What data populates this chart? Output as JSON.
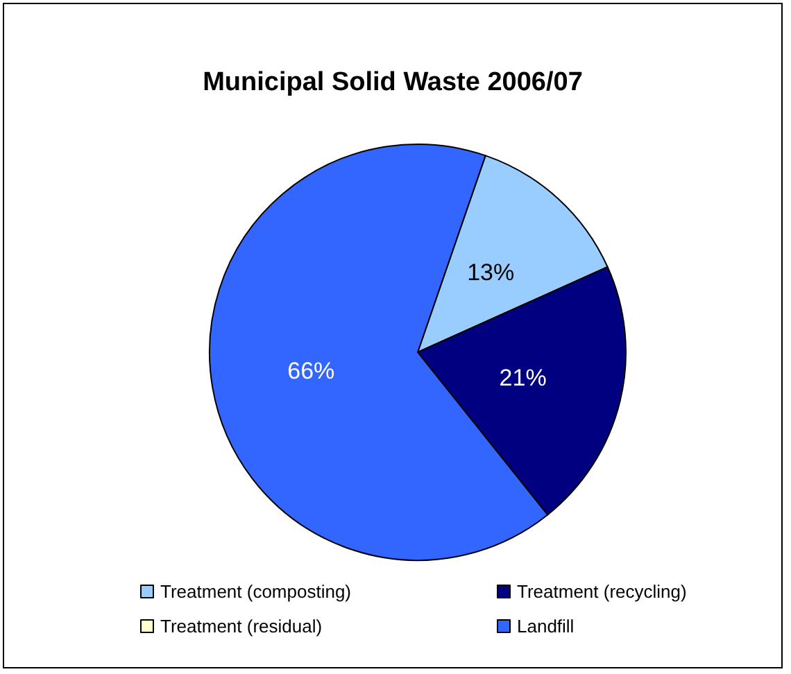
{
  "chart_data": {
    "type": "pie",
    "title": "Municipal Solid Waste 2006/07",
    "categories": [
      "Treatment (composting)",
      "Treatment (recycling)",
      "Treatment (residual)",
      "Landfill"
    ],
    "values": [
      13,
      21,
      0,
      66
    ],
    "colors": [
      "#99ccff",
      "#000080",
      "#ffffcc",
      "#3366ff"
    ],
    "value_labels": [
      "13%",
      "21%",
      null,
      "66%"
    ],
    "legend": "bottom"
  }
}
